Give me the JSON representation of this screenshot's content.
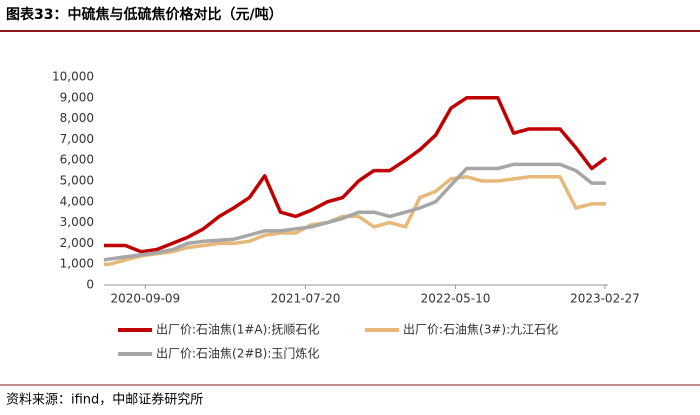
{
  "chart_data": {
    "type": "line",
    "title": "图表33：中硫焦与低硫焦价格对比（元/吨）",
    "source": "资料来源：ifind，中邮证券研究所",
    "x": [
      "2020-06-20",
      "2020-07-01",
      "2020-08-01",
      "2020-09-01",
      "2020-10-01",
      "2020-11-01",
      "2020-12-01",
      "2021-01-01",
      "2021-02-01",
      "2021-03-01",
      "2021-04-01",
      "2021-05-01",
      "2021-06-01",
      "2021-07-01",
      "2021-08-01",
      "2021-09-01",
      "2021-10-01",
      "2021-11-01",
      "2021-12-01",
      "2022-01-01",
      "2022-02-01",
      "2022-03-01",
      "2022-04-01",
      "2022-05-01",
      "2022-06-01",
      "2022-07-01",
      "2022-08-01",
      "2022-09-01",
      "2022-10-01",
      "2022-11-01",
      "2022-12-01",
      "2023-01-01",
      "2023-02-01",
      "2023-03-01"
    ],
    "xlim": [
      "2020-06-20",
      "2023-03-05"
    ],
    "xticks": [
      "2020-09-09",
      "2021-07-20",
      "2022-05-10",
      "2023-02-27"
    ],
    "ylim": [
      0,
      10000
    ],
    "yticks": [
      0,
      {
        "value": 1000,
        "label": "1,000"
      },
      {
        "value": 2000,
        "label": "2,000"
      },
      {
        "value": 3000,
        "label": "3,000"
      },
      {
        "value": 4000,
        "label": "4,000"
      },
      {
        "value": 5000,
        "label": "5,000"
      },
      {
        "value": 6000,
        "label": "6,000"
      },
      {
        "value": 7000,
        "label": "7,000"
      },
      {
        "value": 8000,
        "label": "8,000"
      },
      {
        "value": 9000,
        "label": "9,000"
      },
      {
        "value": 10000,
        "label": "10,000"
      }
    ],
    "grid": false,
    "legend": "bottom",
    "series": [
      {
        "name": "出厂价:石油焦(1#A):抚顺石化",
        "color": "#c00000",
        "values": [
          1900,
          1900,
          1900,
          1600,
          1700,
          2000,
          2300,
          2700,
          3300,
          3700,
          4200,
          5250,
          3500,
          3300,
          3600,
          4000,
          4200,
          5000,
          5500,
          5500,
          6000,
          6500,
          7200,
          8500,
          9000,
          9000,
          9000,
          7300,
          7500,
          7500,
          7500,
          6600,
          5600,
          6100
        ]
      },
      {
        "name": "出厂价:石油焦(3#):九江石化",
        "color": "#e6b87a",
        "values": [
          1000,
          1000,
          1200,
          1400,
          1500,
          1600,
          1800,
          1900,
          2000,
          2000,
          2100,
          2400,
          2500,
          2500,
          2900,
          3000,
          3300,
          3300,
          2800,
          3000,
          2800,
          4200,
          4500,
          5100,
          5200,
          5000,
          5000,
          5100,
          5200,
          5200,
          5200,
          3700,
          3900,
          3900
        ]
      },
      {
        "name": "出厂价:石油焦(2#B):玉门炼化",
        "color": "#a6a6a6",
        "values": [
          1200,
          1250,
          1350,
          1450,
          1550,
          1700,
          2000,
          2100,
          2150,
          2200,
          2400,
          2600,
          2600,
          2700,
          2800,
          3000,
          3200,
          3500,
          3500,
          3300,
          3500,
          3700,
          4000,
          4800,
          5600,
          5600,
          5600,
          5800,
          5800,
          5800,
          5800,
          5500,
          4900,
          4900
        ]
      }
    ]
  }
}
